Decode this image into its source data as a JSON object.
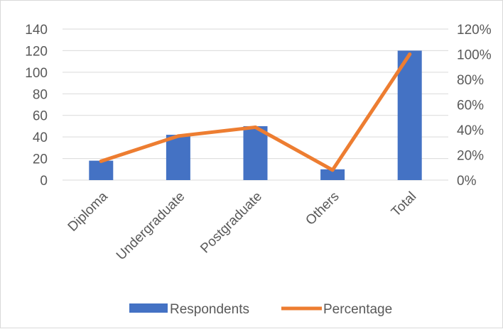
{
  "chart_data": {
    "type": "bar",
    "categories": [
      "Diploma",
      "Undergraduate",
      "Postgraduate",
      "Others",
      "Total"
    ],
    "series": [
      {
        "name": "Respondents",
        "kind": "bar",
        "axis": "left",
        "values": [
          18,
          42,
          50,
          10,
          120
        ]
      },
      {
        "name": "Percentage",
        "kind": "line",
        "axis": "right",
        "values": [
          0.15,
          0.35,
          0.42,
          0.08,
          1.0
        ]
      }
    ],
    "ylim_left": [
      0,
      140
    ],
    "yticks_left": [
      "0",
      "20",
      "40",
      "60",
      "80",
      "100",
      "120",
      "140"
    ],
    "ylim_right": [
      0,
      1.2
    ],
    "yticks_right": [
      "0%",
      "20%",
      "40%",
      "60%",
      "80%",
      "100%",
      "120%"
    ],
    "grid": true,
    "legend_position": "bottom",
    "colors": {
      "bar": "#4472c4",
      "line": "#ed7d31",
      "grid": "#d9d9d9",
      "text": "#595959"
    }
  }
}
